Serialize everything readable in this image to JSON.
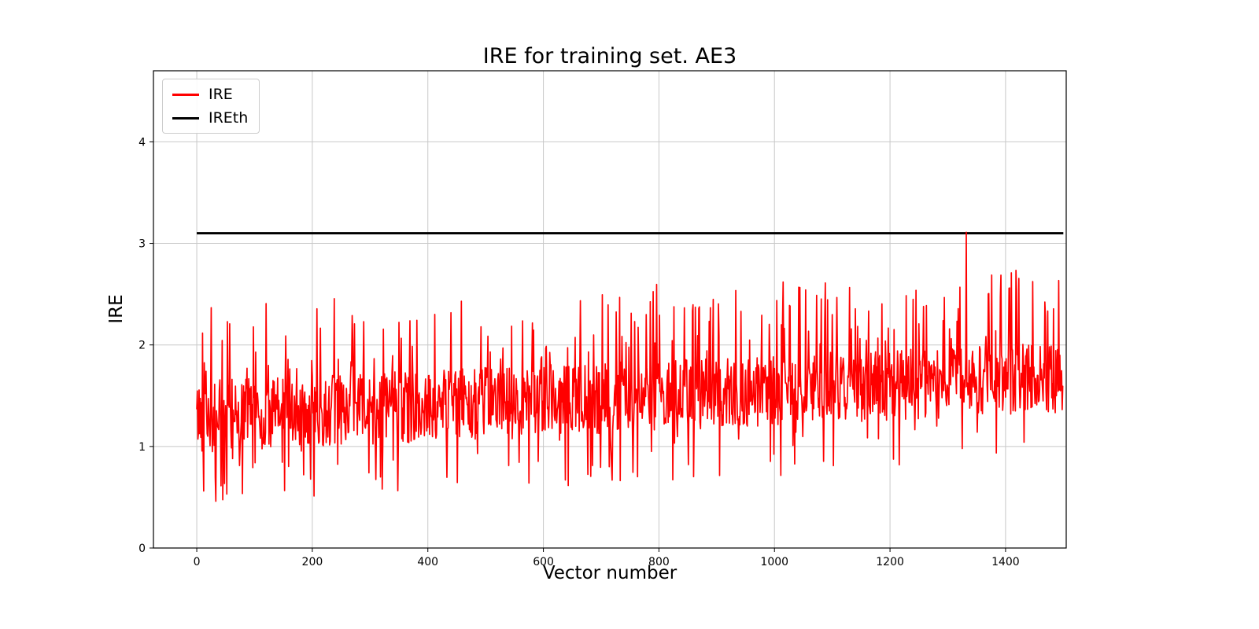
{
  "chart_data": {
    "type": "line",
    "title": "IRE for training set. AE3",
    "xlabel": "Vector number",
    "ylabel": "IRE",
    "xlim": [
      -75,
      1505
    ],
    "ylim": [
      0,
      4.7
    ],
    "xticks": [
      0,
      200,
      400,
      600,
      800,
      1000,
      1200,
      1400
    ],
    "yticks": [
      0,
      1,
      2,
      3,
      4
    ],
    "grid": true,
    "grid_color": "#c8c8c8",
    "legend": {
      "position": "upper left",
      "entries": [
        {
          "label": "IRE",
          "color": "#ff0000"
        },
        {
          "label": "IREth",
          "color": "#000000"
        }
      ]
    },
    "threshold": {
      "name": "IREth",
      "value": 3.1,
      "x_start": 0,
      "x_end": 1500,
      "color": "#000000",
      "line_width": 3
    },
    "series": {
      "name": "IRE",
      "color": "#ff0000",
      "line_width": 1.7,
      "n_points": 1500,
      "x_start": 0,
      "x_step": 1,
      "baseline_start": 1.3,
      "baseline_end": 1.68,
      "body_noise": 0.35,
      "spike_probability": 0.1,
      "spike_extra_min": 0.4,
      "spike_extra_max": 1.1,
      "dip_probability": 0.08,
      "value_min_start": 0.45,
      "value_min_end": 0.78,
      "value_max": 2.75,
      "outlier": {
        "x": 1332,
        "value": 3.11
      },
      "seed": 42
    }
  }
}
